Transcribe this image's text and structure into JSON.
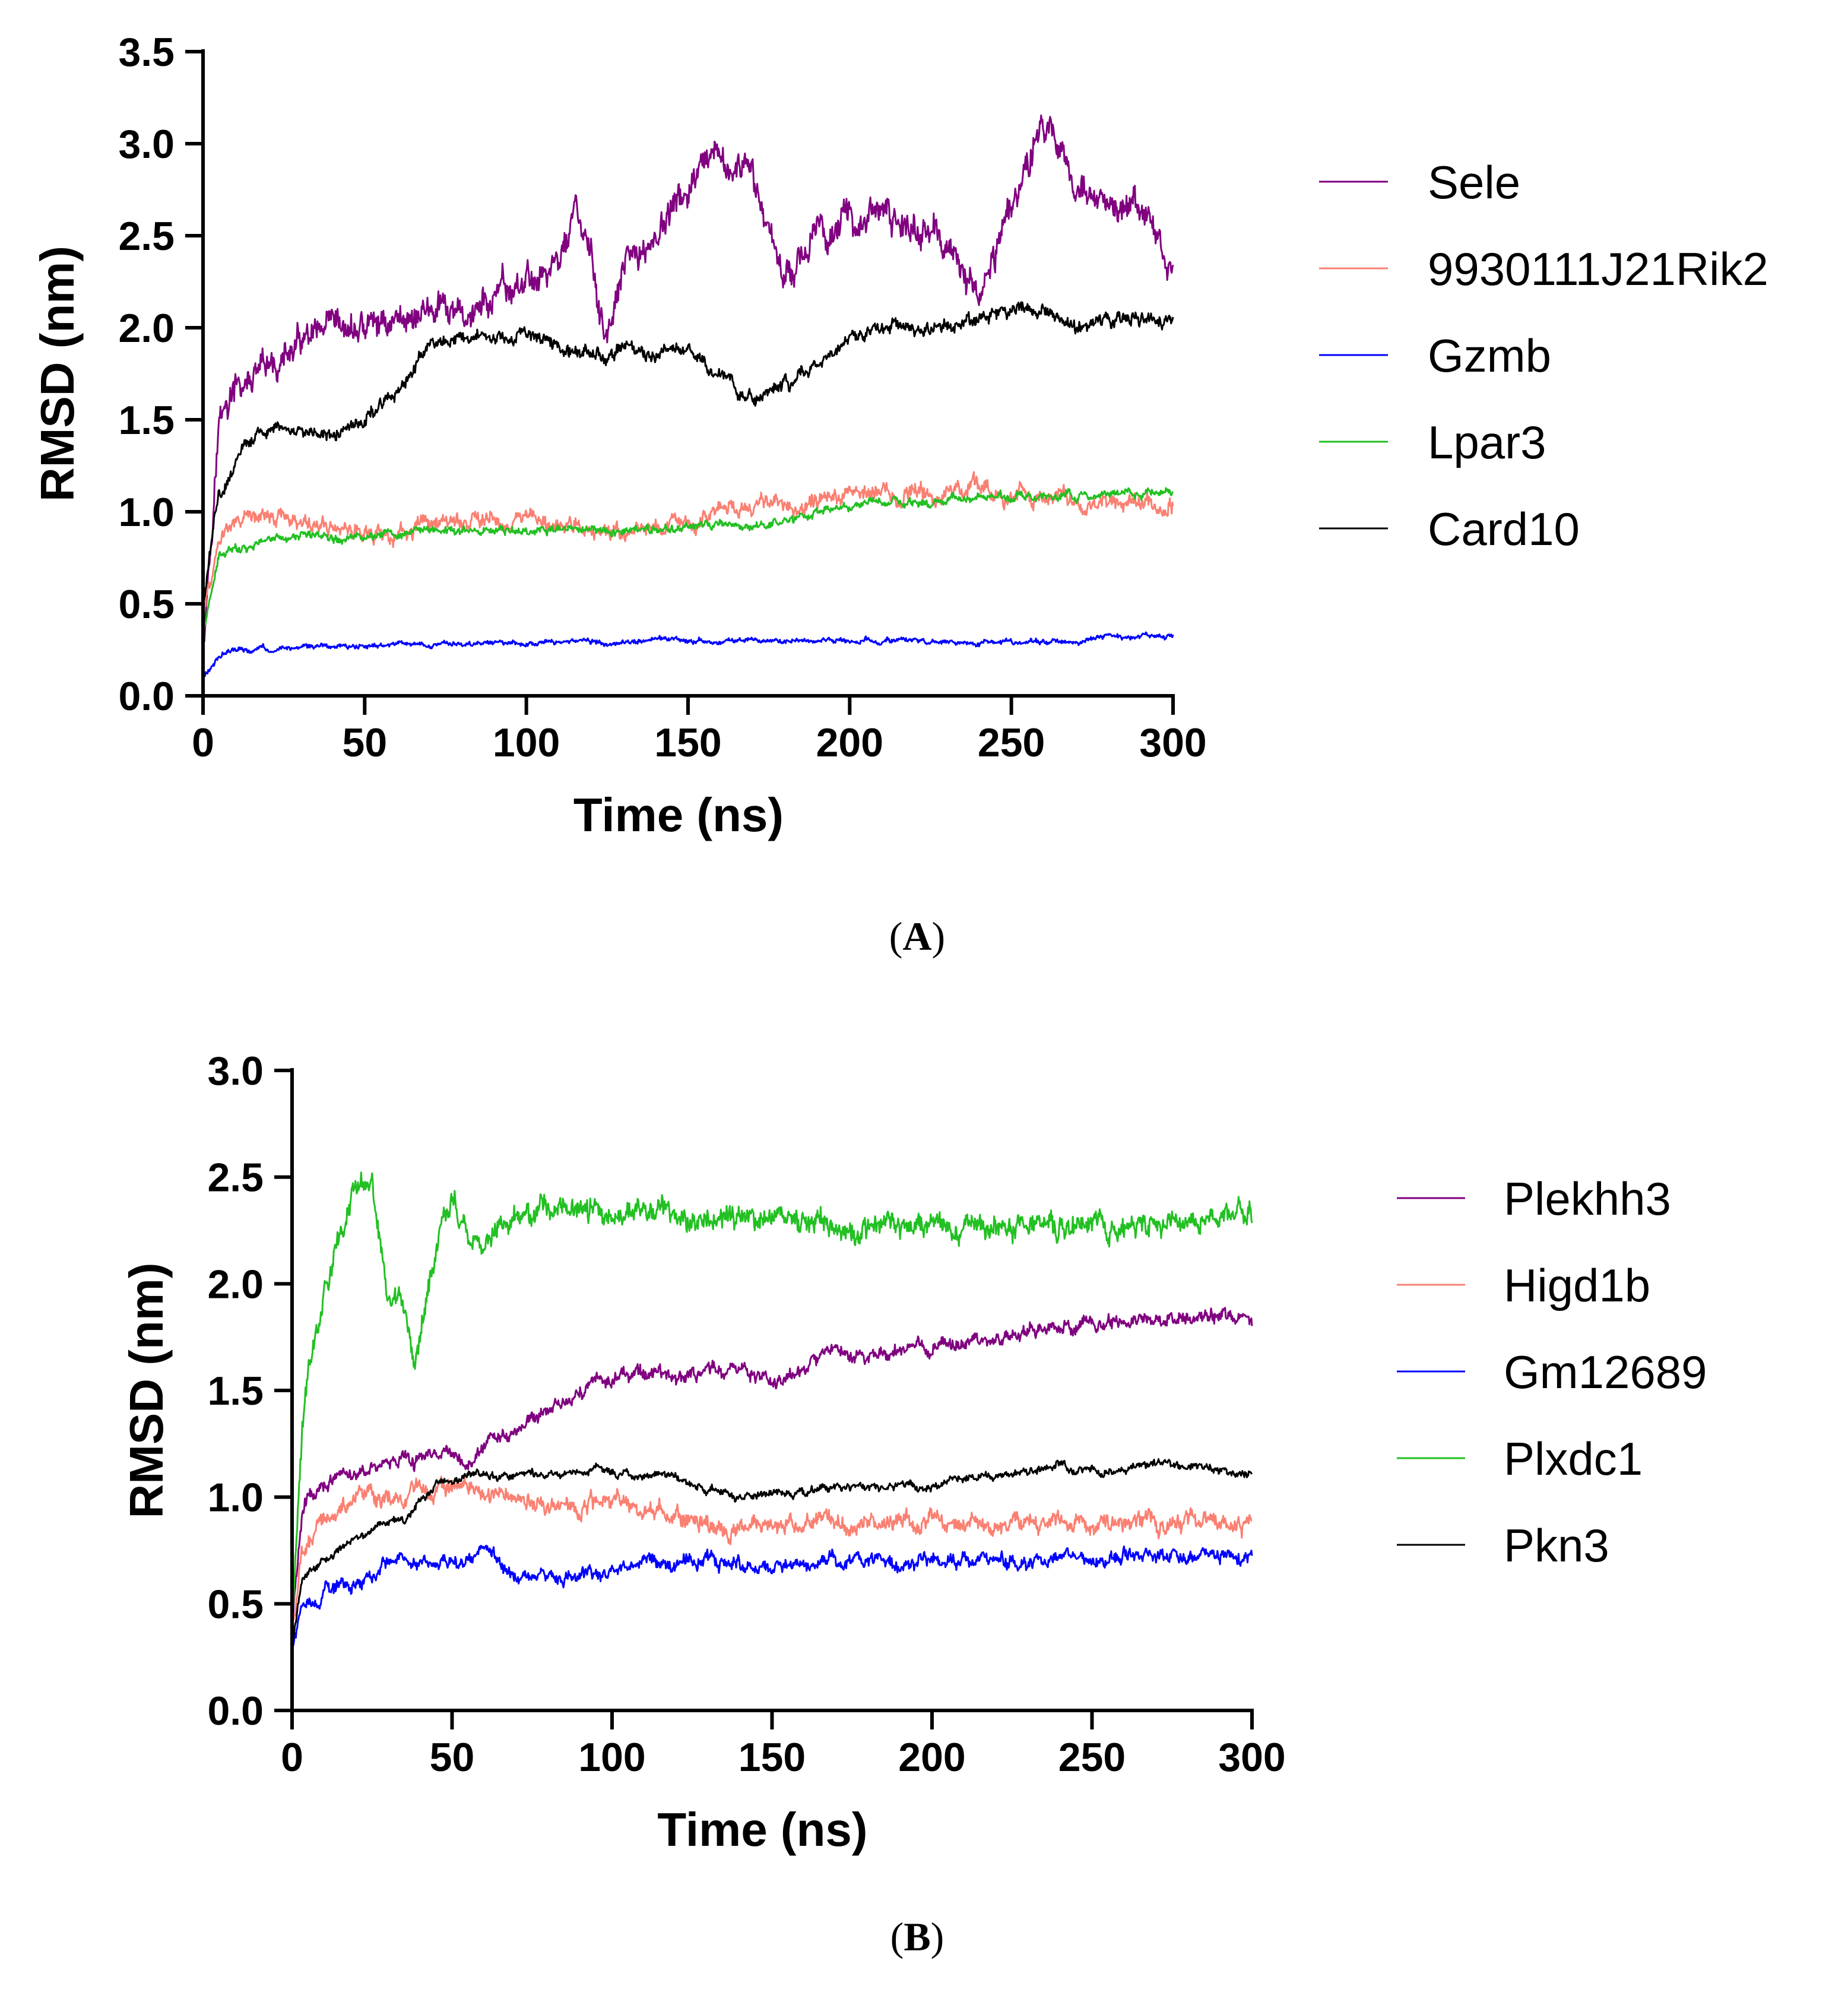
{
  "chart_data": [
    {
      "type": "line",
      "panel_label": "A",
      "title": "",
      "xlabel": "Time (ns)",
      "ylabel": "RMSD (nm)",
      "xlim": [
        0,
        300
      ],
      "ylim": [
        0,
        3.5
      ],
      "x_ticks": [
        "0",
        "50",
        "100",
        "150",
        "200",
        "250",
        "300"
      ],
      "y_ticks": [
        "0.0",
        "0.5",
        "1.0",
        "1.5",
        "2.0",
        "2.5",
        "3.0",
        "3.5"
      ],
      "grid": false,
      "legend_position": "right",
      "x": [
        0,
        5,
        10,
        20,
        30,
        40,
        50,
        60,
        70,
        80,
        90,
        100,
        110,
        115,
        120,
        125,
        130,
        140,
        150,
        160,
        165,
        170,
        180,
        190,
        200,
        210,
        220,
        230,
        240,
        250,
        260,
        265,
        270,
        280,
        290,
        300
      ],
      "series": [
        {
          "name": "Sele",
          "color": "#800080",
          "noise": 0.09,
          "values": [
            0.3,
            1.5,
            1.65,
            1.75,
            1.9,
            1.95,
            2.0,
            2.05,
            2.1,
            2.05,
            2.15,
            2.25,
            2.35,
            2.65,
            2.35,
            1.9,
            2.3,
            2.5,
            2.75,
            2.9,
            2.85,
            2.8,
            2.3,
            2.5,
            2.6,
            2.6,
            2.55,
            2.45,
            2.15,
            2.7,
            3.1,
            3.0,
            2.8,
            2.6,
            2.65,
            2.3
          ]
        },
        {
          "name": "9930111J21Rik2",
          "color": "#fa8072",
          "noise": 0.05,
          "values": [
            0.45,
            0.85,
            0.95,
            1.0,
            0.95,
            0.92,
            0.9,
            0.85,
            0.95,
            0.95,
            0.97,
            0.95,
            0.9,
            0.9,
            0.88,
            0.9,
            0.92,
            0.93,
            0.95,
            1.0,
            1.0,
            1.02,
            1.0,
            1.05,
            1.1,
            1.1,
            1.1,
            1.12,
            1.15,
            1.1,
            1.1,
            1.1,
            1.05,
            1.05,
            1.05,
            1.05
          ]
        },
        {
          "name": "Gzmb",
          "color": "#0000ff",
          "noise": 0.015,
          "values": [
            0.1,
            0.22,
            0.25,
            0.26,
            0.26,
            0.27,
            0.27,
            0.28,
            0.28,
            0.28,
            0.29,
            0.29,
            0.3,
            0.3,
            0.29,
            0.29,
            0.29,
            0.3,
            0.3,
            0.3,
            0.3,
            0.3,
            0.3,
            0.3,
            0.3,
            0.3,
            0.3,
            0.29,
            0.29,
            0.29,
            0.29,
            0.3,
            0.3,
            0.32,
            0.33,
            0.33
          ]
        },
        {
          "name": "Lpar3",
          "color": "#22c022",
          "noise": 0.025,
          "values": [
            0.35,
            0.75,
            0.8,
            0.85,
            0.87,
            0.87,
            0.87,
            0.88,
            0.9,
            0.9,
            0.9,
            0.9,
            0.9,
            0.9,
            0.9,
            0.9,
            0.9,
            0.9,
            0.92,
            0.93,
            0.92,
            0.92,
            0.95,
            1.0,
            1.02,
            1.05,
            1.05,
            1.07,
            1.08,
            1.08,
            1.08,
            1.08,
            1.08,
            1.09,
            1.1,
            1.1
          ]
        },
        {
          "name": "Card10",
          "color": "#000000",
          "noise": 0.04,
          "values": [
            0.5,
            1.1,
            1.3,
            1.45,
            1.45,
            1.42,
            1.5,
            1.65,
            1.9,
            1.95,
            1.95,
            1.98,
            1.9,
            1.85,
            1.88,
            1.85,
            1.9,
            1.88,
            1.85,
            1.75,
            1.65,
            1.6,
            1.7,
            1.8,
            1.95,
            2.0,
            2.0,
            2.0,
            2.05,
            2.1,
            2.1,
            2.05,
            2.0,
            2.05,
            2.05,
            2.05
          ]
        }
      ]
    },
    {
      "type": "line",
      "panel_label": "B",
      "title": "",
      "xlabel": "Time (ns)",
      "ylabel": "RMSD (nm)",
      "xlim": [
        0,
        300
      ],
      "ylim": [
        0,
        3.0
      ],
      "x_ticks": [
        "0",
        "50",
        "100",
        "150",
        "200",
        "250",
        "300"
      ],
      "y_ticks": [
        "0.0",
        "0.5",
        "1.0",
        "1.5",
        "2.0",
        "2.5",
        "3.0"
      ],
      "grid": false,
      "legend_position": "right",
      "x": [
        0,
        3,
        5,
        10,
        15,
        20,
        25,
        30,
        35,
        38,
        40,
        45,
        50,
        55,
        60,
        70,
        80,
        90,
        100,
        110,
        120,
        130,
        140,
        150,
        160,
        170,
        180,
        190,
        200,
        210,
        220,
        230,
        240,
        250,
        260,
        270,
        280,
        290,
        300
      ],
      "series": [
        {
          "name": "Plekhh3",
          "color": "#800080",
          "noise": 0.035,
          "values": [
            0.4,
            0.9,
            1.0,
            1.05,
            1.1,
            1.1,
            1.15,
            1.15,
            1.2,
            1.15,
            1.2,
            1.2,
            1.2,
            1.15,
            1.25,
            1.3,
            1.4,
            1.5,
            1.55,
            1.6,
            1.55,
            1.6,
            1.6,
            1.55,
            1.6,
            1.7,
            1.65,
            1.7,
            1.7,
            1.72,
            1.75,
            1.78,
            1.8,
            1.8,
            1.82,
            1.83,
            1.84,
            1.85,
            1.85
          ]
        },
        {
          "name": "Higd1b",
          "color": "#fa8072",
          "noise": 0.045,
          "values": [
            0.4,
            0.7,
            0.8,
            0.9,
            0.95,
            1.0,
            1.0,
            1.0,
            1.0,
            1.0,
            1.05,
            1.05,
            1.05,
            1.05,
            1.0,
            1.0,
            0.95,
            0.95,
            1.0,
            0.95,
            0.9,
            0.9,
            0.85,
            0.88,
            0.9,
            0.88,
            0.88,
            0.88,
            0.88,
            0.88,
            0.88,
            0.88,
            0.9,
            0.88,
            0.88,
            0.88,
            0.88,
            0.88,
            0.88
          ]
        },
        {
          "name": "Gm12689",
          "color": "#0000ff",
          "noise": 0.035,
          "values": [
            0.3,
            0.5,
            0.52,
            0.55,
            0.58,
            0.6,
            0.65,
            0.7,
            0.72,
            0.68,
            0.68,
            0.68,
            0.7,
            0.7,
            0.75,
            0.62,
            0.62,
            0.62,
            0.65,
            0.7,
            0.68,
            0.7,
            0.68,
            0.68,
            0.7,
            0.7,
            0.7,
            0.7,
            0.7,
            0.7,
            0.7,
            0.7,
            0.72,
            0.72,
            0.72,
            0.72,
            0.72,
            0.72,
            0.72
          ]
        },
        {
          "name": "Plxdc1",
          "color": "#22c022",
          "noise": 0.06,
          "values": [
            0.4,
            1.3,
            1.6,
            1.95,
            2.25,
            2.45,
            2.5,
            1.95,
            1.9,
            1.6,
            1.75,
            2.15,
            2.35,
            2.2,
            2.2,
            2.3,
            2.38,
            2.35,
            2.33,
            2.32,
            2.33,
            2.32,
            2.3,
            2.3,
            2.28,
            2.26,
            2.26,
            2.25,
            2.25,
            2.26,
            2.27,
            2.28,
            2.28,
            2.28,
            2.28,
            2.28,
            2.29,
            2.3,
            2.32
          ]
        },
        {
          "name": "Pkn3",
          "color": "#000000",
          "noise": 0.02,
          "values": [
            0.3,
            0.6,
            0.65,
            0.7,
            0.75,
            0.8,
            0.85,
            0.88,
            0.9,
            0.95,
            1.0,
            1.05,
            1.08,
            1.1,
            1.1,
            1.1,
            1.1,
            1.12,
            1.12,
            1.1,
            1.1,
            1.03,
            1.0,
            1.02,
            1.02,
            1.05,
            1.05,
            1.05,
            1.05,
            1.1,
            1.1,
            1.12,
            1.15,
            1.12,
            1.12,
            1.15,
            1.15,
            1.12,
            1.1
          ]
        }
      ]
    }
  ]
}
